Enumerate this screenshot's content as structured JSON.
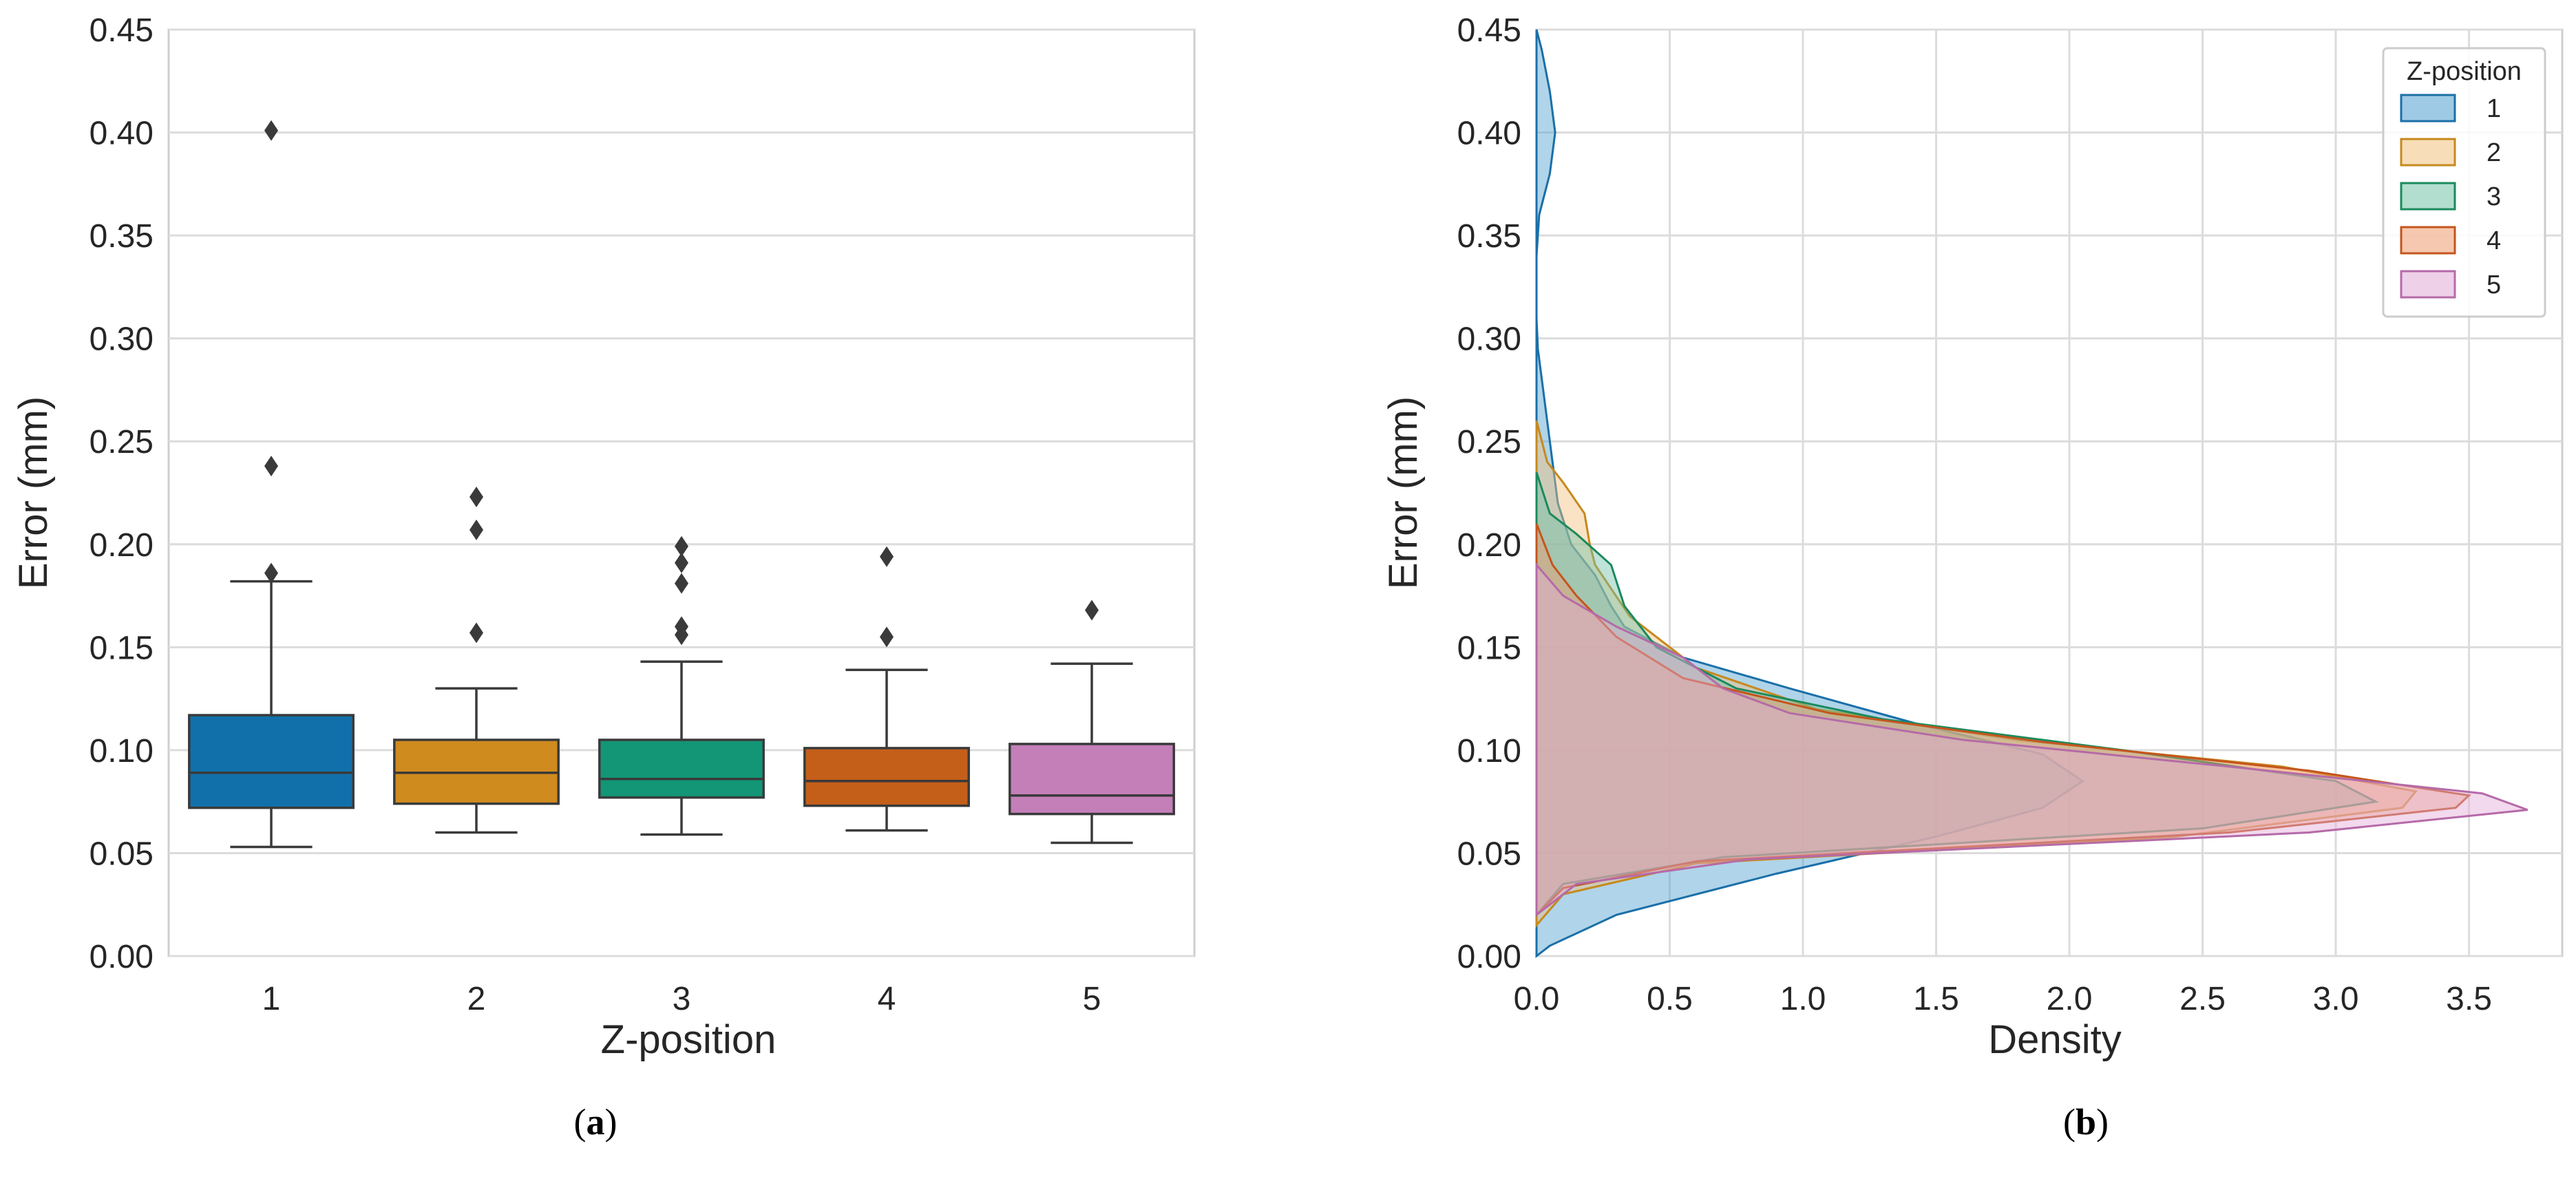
{
  "chart_data": [
    {
      "type": "box",
      "panel_label": "(a)",
      "panel_letter": "a",
      "xlabel": "Z-position",
      "ylabel": "Error (mm)",
      "ylim": [
        0,
        0.45
      ],
      "yticks": [
        0.0,
        0.05,
        0.1,
        0.15,
        0.2,
        0.25,
        0.3,
        0.35,
        0.4,
        0.45
      ],
      "ytick_labels": [
        "0.00",
        "0.05",
        "0.10",
        "0.15",
        "0.20",
        "0.25",
        "0.30",
        "0.35",
        "0.40",
        "0.45"
      ],
      "grid": "horizontal",
      "categories": [
        "1",
        "2",
        "3",
        "4",
        "5"
      ],
      "colors": [
        "#1170aa",
        "#d08b1e",
        "#129676",
        "#c45f1a",
        "#c47fb8"
      ],
      "boxes": [
        {
          "category": "1",
          "whisker_low": 0.053,
          "q1": 0.072,
          "median": 0.089,
          "q3": 0.117,
          "whisker_high": 0.182,
          "outliers": [
            0.401,
            0.238,
            0.186
          ]
        },
        {
          "category": "2",
          "whisker_low": 0.06,
          "q1": 0.074,
          "median": 0.089,
          "q3": 0.105,
          "whisker_high": 0.13,
          "outliers": [
            0.223,
            0.207,
            0.157
          ]
        },
        {
          "category": "3",
          "whisker_low": 0.059,
          "q1": 0.077,
          "median": 0.086,
          "q3": 0.105,
          "whisker_high": 0.143,
          "outliers": [
            0.199,
            0.191,
            0.181,
            0.16,
            0.156
          ]
        },
        {
          "category": "4",
          "whisker_low": 0.061,
          "q1": 0.073,
          "median": 0.085,
          "q3": 0.101,
          "whisker_high": 0.139,
          "outliers": [
            0.194,
            0.155
          ]
        },
        {
          "category": "5",
          "whisker_low": 0.055,
          "q1": 0.069,
          "median": 0.078,
          "q3": 0.103,
          "whisker_high": 0.142,
          "outliers": [
            0.168
          ]
        }
      ]
    },
    {
      "type": "area",
      "orientation": "horizontal-density",
      "panel_label": "(b)",
      "panel_letter": "b",
      "xlabel": "Density",
      "ylabel": "Error (mm)",
      "xlim": [
        0,
        3.85
      ],
      "ylim": [
        0,
        0.45
      ],
      "xticks": [
        0.0,
        0.5,
        1.0,
        1.5,
        2.0,
        2.5,
        3.0,
        3.5
      ],
      "xtick_labels": [
        "0.0",
        "0.5",
        "1.0",
        "1.5",
        "2.0",
        "2.5",
        "3.0",
        "3.5"
      ],
      "yticks": [
        0.0,
        0.05,
        0.1,
        0.15,
        0.2,
        0.25,
        0.3,
        0.35,
        0.4,
        0.45
      ],
      "ytick_labels": [
        "0.00",
        "0.05",
        "0.10",
        "0.15",
        "0.20",
        "0.25",
        "0.30",
        "0.35",
        "0.40",
        "0.45"
      ],
      "grid": "both",
      "legend": {
        "title": "Z-position",
        "placement": "top-right",
        "entries": [
          "1",
          "2",
          "3",
          "4",
          "5"
        ]
      },
      "series": [
        {
          "name": "1",
          "color": "#4f9fcf",
          "edge": "#1a6fa8",
          "points": [
            [
              0,
              0.0
            ],
            [
              0.05,
              0.005
            ],
            [
              0.3,
              0.02
            ],
            [
              0.9,
              0.04
            ],
            [
              1.5,
              0.058
            ],
            [
              1.9,
              0.072
            ],
            [
              2.05,
              0.085
            ],
            [
              1.9,
              0.098
            ],
            [
              1.45,
              0.112
            ],
            [
              0.95,
              0.13
            ],
            [
              0.55,
              0.145
            ],
            [
              0.33,
              0.16
            ],
            [
              0.28,
              0.17
            ],
            [
              0.22,
              0.185
            ],
            [
              0.13,
              0.2
            ],
            [
              0.08,
              0.22
            ],
            [
              0.06,
              0.24
            ],
            [
              0.04,
              0.26
            ],
            [
              0.02,
              0.28
            ],
            [
              0.005,
              0.295
            ],
            [
              0,
              0.31
            ],
            [
              0,
              0.34
            ],
            [
              0.01,
              0.36
            ],
            [
              0.05,
              0.38
            ],
            [
              0.07,
              0.4
            ],
            [
              0.05,
              0.42
            ],
            [
              0.02,
              0.44
            ],
            [
              0,
              0.45
            ]
          ]
        },
        {
          "name": "2",
          "color": "#f1c27d",
          "edge": "#c6891d",
          "points": [
            [
              0,
              0.015
            ],
            [
              0.1,
              0.03
            ],
            [
              0.6,
              0.045
            ],
            [
              2.4,
              0.058
            ],
            [
              3.25,
              0.072
            ],
            [
              3.3,
              0.08
            ],
            [
              2.8,
              0.092
            ],
            [
              1.8,
              0.105
            ],
            [
              1.05,
              0.12
            ],
            [
              0.6,
              0.14
            ],
            [
              0.35,
              0.165
            ],
            [
              0.22,
              0.19
            ],
            [
              0.2,
              0.2
            ],
            [
              0.18,
              0.215
            ],
            [
              0.1,
              0.23
            ],
            [
              0.04,
              0.24
            ],
            [
              0,
              0.26
            ]
          ]
        },
        {
          "name": "3",
          "color": "#72c2a8",
          "edge": "#1b8a5d",
          "points": [
            [
              0,
              0.02
            ],
            [
              0.1,
              0.035
            ],
            [
              0.7,
              0.048
            ],
            [
              2.5,
              0.062
            ],
            [
              3.15,
              0.075
            ],
            [
              3.0,
              0.085
            ],
            [
              2.2,
              0.1
            ],
            [
              1.3,
              0.115
            ],
            [
              0.75,
              0.13
            ],
            [
              0.45,
              0.15
            ],
            [
              0.33,
              0.17
            ],
            [
              0.28,
              0.19
            ],
            [
              0.15,
              0.205
            ],
            [
              0.05,
              0.215
            ],
            [
              0,
              0.235
            ]
          ]
        },
        {
          "name": "4",
          "color": "#ef9a6d",
          "edge": "#c4551e",
          "points": [
            [
              0,
              0.02
            ],
            [
              0.1,
              0.033
            ],
            [
              0.6,
              0.046
            ],
            [
              2.6,
              0.06
            ],
            [
              3.45,
              0.072
            ],
            [
              3.5,
              0.078
            ],
            [
              2.9,
              0.09
            ],
            [
              1.9,
              0.104
            ],
            [
              1.1,
              0.118
            ],
            [
              0.55,
              0.135
            ],
            [
              0.3,
              0.155
            ],
            [
              0.15,
              0.175
            ],
            [
              0.06,
              0.19
            ],
            [
              0,
              0.21
            ]
          ]
        },
        {
          "name": "5",
          "color": "#e2aad7",
          "edge": "#b56aa8",
          "points": [
            [
              0,
              0.02
            ],
            [
              0.15,
              0.035
            ],
            [
              0.8,
              0.047
            ],
            [
              2.9,
              0.06
            ],
            [
              3.72,
              0.071
            ],
            [
              3.55,
              0.079
            ],
            [
              2.6,
              0.092
            ],
            [
              1.6,
              0.105
            ],
            [
              0.95,
              0.118
            ],
            [
              0.7,
              0.13
            ],
            [
              0.55,
              0.145
            ],
            [
              0.3,
              0.16
            ],
            [
              0.1,
              0.175
            ],
            [
              0,
              0.19
            ]
          ]
        }
      ]
    }
  ]
}
